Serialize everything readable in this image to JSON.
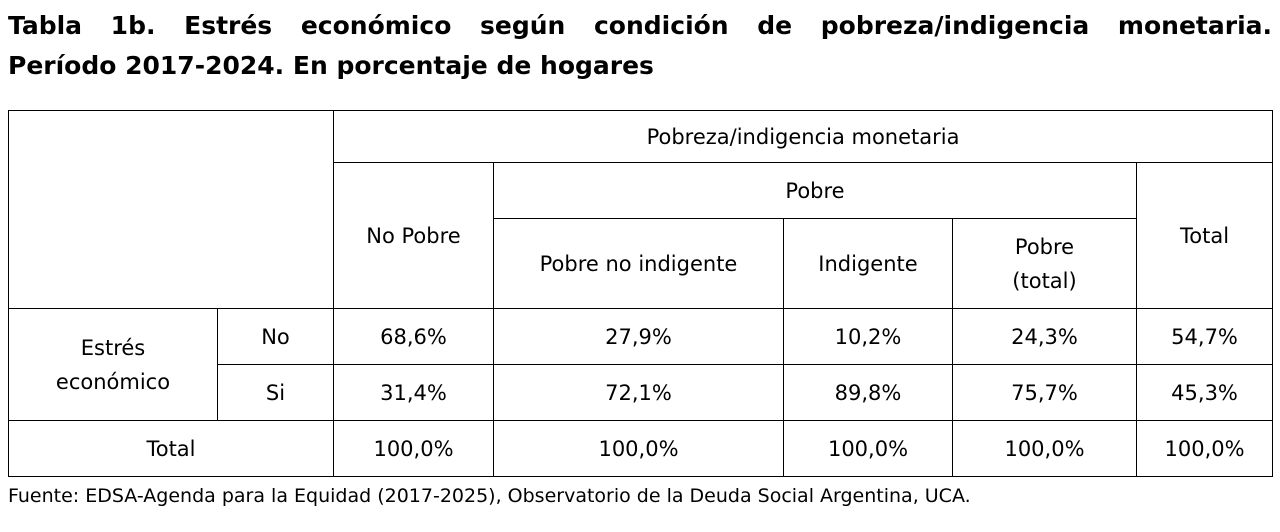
{
  "title": {
    "line1": "Tabla 1b. Estrés económico según condición de pobreza/indigencia monetaria.",
    "line2": "Período 2017-2024. En porcentaje de hogares"
  },
  "table": {
    "header_group": "Pobreza/indigencia monetaria",
    "col_no_pobre": "No Pobre",
    "pobre_group": "Pobre",
    "col_total": "Total",
    "col_pobre_no_indigente": "Pobre no indigente",
    "col_indigente": "Indigente",
    "col_pobre_total_line1": "Pobre",
    "col_pobre_total_line2": "(total)",
    "row_group_line1": "Estrés",
    "row_group_line2": "económico",
    "rows": [
      {
        "label": "No",
        "values": [
          "68,6%",
          "27,9%",
          "10,2%",
          "24,3%",
          "54,7%"
        ]
      },
      {
        "label": "Si",
        "values": [
          "31,4%",
          "72,1%",
          "89,8%",
          "75,7%",
          "45,3%"
        ]
      }
    ],
    "total_row": {
      "label": "Total",
      "values": [
        "100,0%",
        "100,0%",
        "100,0%",
        "100,0%",
        "100,0%"
      ]
    }
  },
  "footer": "Fuente: EDSA-Agenda para la Equidad (2017-2025), Observatorio de la Deuda Social Argentina, UCA."
}
